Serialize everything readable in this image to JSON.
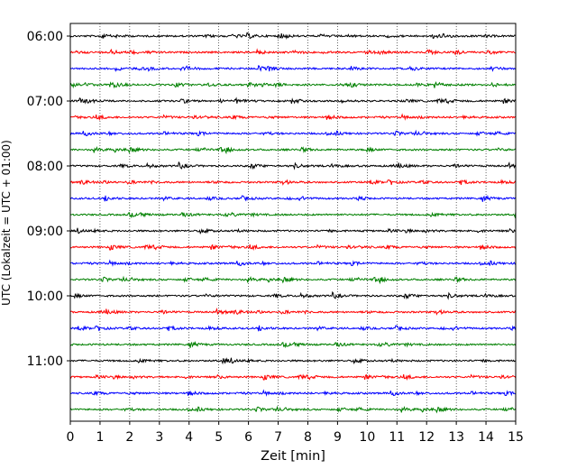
{
  "chart_data": {
    "type": "line",
    "title": "",
    "xlabel": "Zeit  [min]",
    "ylabel": "UTC (Lokalzeit = UTC + 01:00)",
    "xlim": [
      0,
      15
    ],
    "x_ticks": [
      "0",
      "1",
      "2",
      "3",
      "4",
      "5",
      "6",
      "7",
      "8",
      "9",
      "10",
      "11",
      "12",
      "13",
      "14",
      "15"
    ],
    "y_ticks": [
      "06:00",
      "07:00",
      "08:00",
      "09:00",
      "10:00",
      "11:00"
    ],
    "grid": "vertical dotted",
    "trace_interval_minutes": 15,
    "trace_colors": [
      "#000000",
      "#ff0000",
      "#0000ff",
      "#008000"
    ],
    "series": [
      {
        "start": "06:00"
      },
      {
        "start": "06:15"
      },
      {
        "start": "06:30"
      },
      {
        "start": "06:45"
      },
      {
        "start": "07:00"
      },
      {
        "start": "07:15"
      },
      {
        "start": "07:30"
      },
      {
        "start": "07:45"
      },
      {
        "start": "08:00"
      },
      {
        "start": "08:15"
      },
      {
        "start": "08:30"
      },
      {
        "start": "08:45"
      },
      {
        "start": "09:00"
      },
      {
        "start": "09:15"
      },
      {
        "start": "09:30"
      },
      {
        "start": "09:45"
      },
      {
        "start": "10:00"
      },
      {
        "start": "10:15"
      },
      {
        "start": "10:30"
      },
      {
        "start": "10:45"
      },
      {
        "start": "11:00"
      },
      {
        "start": "11:15"
      },
      {
        "start": "11:30"
      },
      {
        "start": "11:45"
      }
    ]
  }
}
